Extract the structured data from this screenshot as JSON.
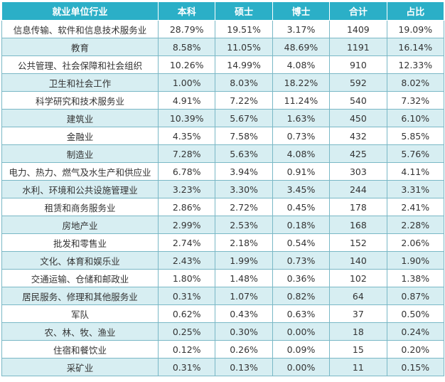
{
  "table": {
    "headers": [
      "就业单位行业",
      "本科",
      "硕士",
      "博士",
      "合计",
      "占比"
    ],
    "rows": [
      [
        "信息传输、软件和信息技术服务业",
        "28.79%",
        "19.51%",
        "3.17%",
        "1409",
        "19.09%"
      ],
      [
        "教育",
        "8.58%",
        "11.05%",
        "48.69%",
        "1191",
        "16.14%"
      ],
      [
        "公共管理、社会保障和社会组织",
        "10.26%",
        "14.99%",
        "4.08%",
        "910",
        "12.33%"
      ],
      [
        "卫生和社会工作",
        "1.00%",
        "8.03%",
        "18.22%",
        "592",
        "8.02%"
      ],
      [
        "科学研究和技术服务业",
        "4.91%",
        "7.22%",
        "11.24%",
        "540",
        "7.32%"
      ],
      [
        "建筑业",
        "10.39%",
        "5.67%",
        "1.63%",
        "450",
        "6.10%"
      ],
      [
        "金融业",
        "4.35%",
        "7.58%",
        "0.73%",
        "432",
        "5.85%"
      ],
      [
        "制造业",
        "7.28%",
        "5.63%",
        "4.08%",
        "425",
        "5.76%"
      ],
      [
        "电力、热力、燃气及水生产和供应业",
        "6.78%",
        "3.94%",
        "0.91%",
        "303",
        "4.11%"
      ],
      [
        "水利、环境和公共设施管理业",
        "3.23%",
        "3.30%",
        "3.45%",
        "244",
        "3.31%"
      ],
      [
        "租赁和商务服务业",
        "2.86%",
        "2.72%",
        "0.45%",
        "178",
        "2.41%"
      ],
      [
        "房地产业",
        "2.99%",
        "2.53%",
        "0.18%",
        "168",
        "2.28%"
      ],
      [
        "批发和零售业",
        "2.74%",
        "2.18%",
        "0.54%",
        "152",
        "2.06%"
      ],
      [
        "文化、体育和娱乐业",
        "2.43%",
        "1.99%",
        "0.73%",
        "140",
        "1.90%"
      ],
      [
        "交通运输、仓储和邮政业",
        "1.80%",
        "1.48%",
        "0.36%",
        "102",
        "1.38%"
      ],
      [
        "居民服务、修理和其他服务业",
        "0.31%",
        "1.07%",
        "0.82%",
        "64",
        "0.87%"
      ],
      [
        "军队",
        "0.62%",
        "0.43%",
        "0.63%",
        "37",
        "0.50%"
      ],
      [
        "农、林、牧、渔业",
        "0.25%",
        "0.30%",
        "0.00%",
        "18",
        "0.24%"
      ],
      [
        "住宿和餐饮业",
        "0.12%",
        "0.26%",
        "0.09%",
        "15",
        "0.20%"
      ],
      [
        "采矿业",
        "0.31%",
        "0.13%",
        "0.00%",
        "11",
        "0.15%"
      ]
    ]
  },
  "colors": {
    "header_bg": "#2bafc7",
    "stripe_bg": "#d7eef2",
    "border": "#7ab8c6"
  }
}
